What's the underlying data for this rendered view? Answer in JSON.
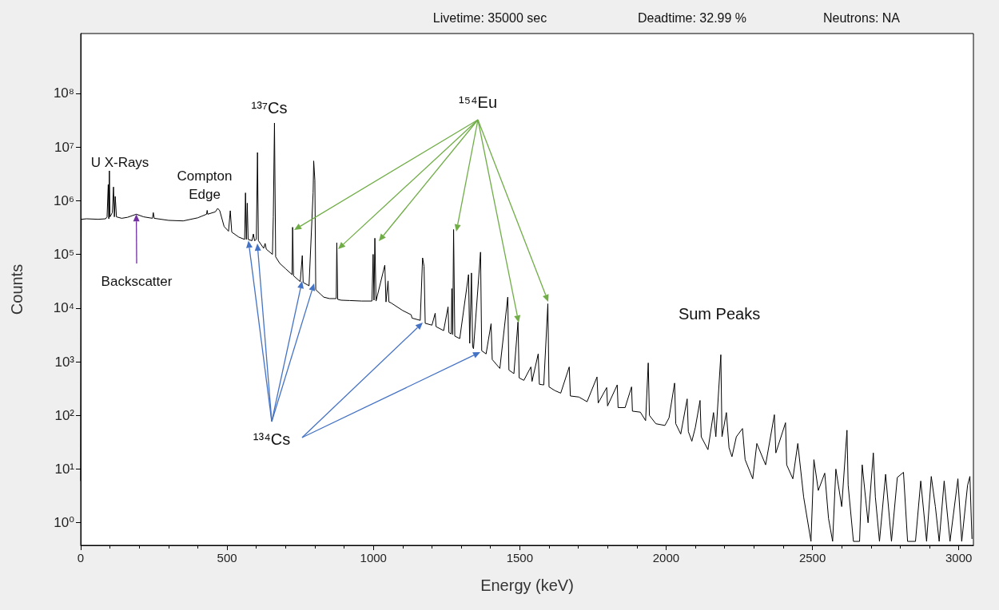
{
  "chart_data": {
    "type": "line",
    "xlabel": "Energy (keV)",
    "ylabel": "Counts",
    "annotations": [
      "Livetime: 35000 sec",
      "Deadtime: 32.99 %",
      "Neutrons: NA",
      "¹³⁷Cs",
      "¹⁵⁴Eu",
      "U X-Rays",
      "Compton\nEdge",
      {
        "text": "Backscatter",
        "x": 190,
        "y": 560000
      },
      {
        "text": "¹³⁴Cs",
        "x": 573,
        "y": 180000
      },
      "Sum Peaks"
    ],
    "series": [
      {
        "color": "#000000",
        "x": [
          0,
          2,
          20,
          60,
          85,
          90,
          94,
          96,
          98,
          100,
          108,
          112,
          115,
          118,
          122,
          140,
          160,
          190,
          215,
          245,
          248,
          251,
          300,
          350,
          400,
          430,
          432,
          434,
          460,
          468,
          475,
          490,
          505,
          511,
          516,
          540,
          560,
          563,
          566,
          569,
          572,
          585,
          590,
          594,
          600,
          604,
          607,
          625,
          630,
          634,
          655,
          658,
          662,
          666,
          680,
          700,
          722,
          724,
          727,
          750,
          757,
          760,
          780,
          794,
          796,
          800,
          803,
          820,
          830,
          850,
          873,
          875,
          878,
          890,
          919,
          960,
          995,
          999,
          1002,
          1005,
          1009,
          1039,
          1043,
          1050,
          1053,
          1060,
          1100,
          1129,
          1132,
          1160,
          1168,
          1173,
          1177,
          1200,
          1211,
          1214,
          1240,
          1255,
          1258,
          1266,
          1268,
          1271,
          1274,
          1278,
          1295,
          1325,
          1329,
          1335,
          1339,
          1342,
          1366,
          1370,
          1385,
          1402,
          1406,
          1432,
          1459,
          1463,
          1480,
          1494,
          1498,
          1514,
          1538,
          1542,
          1563,
          1567,
          1582,
          1596,
          1600,
          1620,
          1640,
          1669,
          1673,
          1702,
          1730,
          1764,
          1768,
          1797,
          1800,
          1833,
          1836,
          1860,
          1882,
          1885,
          1912,
          1930,
          1939,
          1943,
          1965,
          1996,
          2010,
          2029,
          2033,
          2050,
          2072,
          2076,
          2088,
          2100,
          2116,
          2120,
          2143,
          2162,
          2170,
          2187,
          2191,
          2206,
          2215,
          2225,
          2240,
          2261,
          2270,
          2296,
          2310,
          2340,
          2370,
          2375,
          2408,
          2412,
          2433,
          2450,
          2470,
          2495,
          2505,
          2520,
          2542,
          2555,
          2569,
          2580,
          2600,
          2618,
          2622,
          2640,
          2661,
          2670,
          2690,
          2708,
          2715,
          2729,
          2750,
          2770,
          2790,
          2811,
          2825,
          2852,
          2870,
          2890,
          2906,
          2920,
          2933,
          2950,
          2970,
          2997,
          3010,
          3030,
          3038,
          3045
        ],
        "values": [
          6,
          450000,
          460000,
          450000,
          460000,
          500000,
          2000000,
          460000,
          3600000,
          500000,
          600000,
          1800000,
          500000,
          1200000,
          500000,
          470000,
          490000,
          560000,
          500000,
          470000,
          600000,
          470000,
          430000,
          420000,
          480000,
          560000,
          660000,
          560000,
          620000,
          720000,
          650000,
          330000,
          270000,
          650000,
          260000,
          210000,
          190000,
          1400000,
          190000,
          900000,
          190000,
          180000,
          240000,
          180000,
          190000,
          7900000,
          180000,
          130000,
          160000,
          125000,
          100000,
          500000,
          28000000,
          90000,
          68000,
          54000,
          42000,
          320000,
          40000,
          31000,
          95000,
          30000,
          26000,
          1400000,
          5500000,
          2400000,
          22000,
          18000,
          16000,
          15000,
          15000,
          165000,
          14500,
          14000,
          13800,
          13500,
          13500,
          100000,
          14000,
          200000,
          13500,
          63000,
          13000,
          32000,
          13000,
          12500,
          9000,
          7500,
          6500,
          5900,
          86000,
          60000,
          5200,
          4800,
          8000,
          4500,
          3800,
          10500,
          3500,
          3300,
          23000,
          3200,
          290000,
          3000,
          2700,
          42000,
          2200,
          45000,
          1900,
          1750,
          110000,
          1600,
          1400,
          5100,
          1100,
          750,
          16000,
          700,
          600,
          5500,
          500,
          450,
          800,
          430,
          1400,
          380,
          370,
          12000,
          340,
          290,
          260,
          800,
          230,
          220,
          180,
          520,
          170,
          330,
          150,
          370,
          140,
          140,
          340,
          120,
          115,
          80,
          950,
          100,
          70,
          65,
          90,
          400,
          70,
          45,
          203,
          50,
          33,
          60,
          190,
          40,
          23,
          113,
          40,
          1350,
          40,
          113,
          25,
          17,
          40,
          57,
          15,
          6.6,
          30,
          12,
          103,
          20,
          73,
          12,
          6.6,
          30,
          3,
          0.45,
          15,
          4,
          8.4,
          1.2,
          0.45,
          10,
          2,
          53,
          5,
          0.45,
          0.45,
          12,
          1,
          20,
          3,
          0.45,
          8,
          0.45,
          7,
          8.7,
          0.45,
          0.45,
          6,
          0.45,
          7.3,
          2,
          0.45,
          6,
          0.45,
          6.6,
          0.45,
          5,
          7.3,
          0.5
        ]
      }
    ],
    "xlim": [
      0,
      3050
    ],
    "xticks": [
      0,
      500,
      1000,
      1500,
      2000,
      2500,
      3000
    ],
    "ylim": [
      0.38,
      1300000000
    ],
    "yticks": [
      {
        "value": 1,
        "label": "10⁰"
      },
      {
        "value": 10,
        "label": "10¹"
      },
      {
        "value": 100,
        "label": "10²"
      },
      {
        "value": 1000,
        "label": "10³"
      },
      {
        "value": 10000,
        "label": "10⁴"
      },
      {
        "value": 100000,
        "label": "10⁵"
      },
      {
        "value": 1000000,
        "label": "10⁶"
      },
      {
        "value": 10000000,
        "label": "10⁷"
      },
      {
        "value": 100000000,
        "label": "10⁸"
      }
    ],
    "log": "y",
    "grid": false,
    "marker": "none",
    "line_style": "solid"
  }
}
